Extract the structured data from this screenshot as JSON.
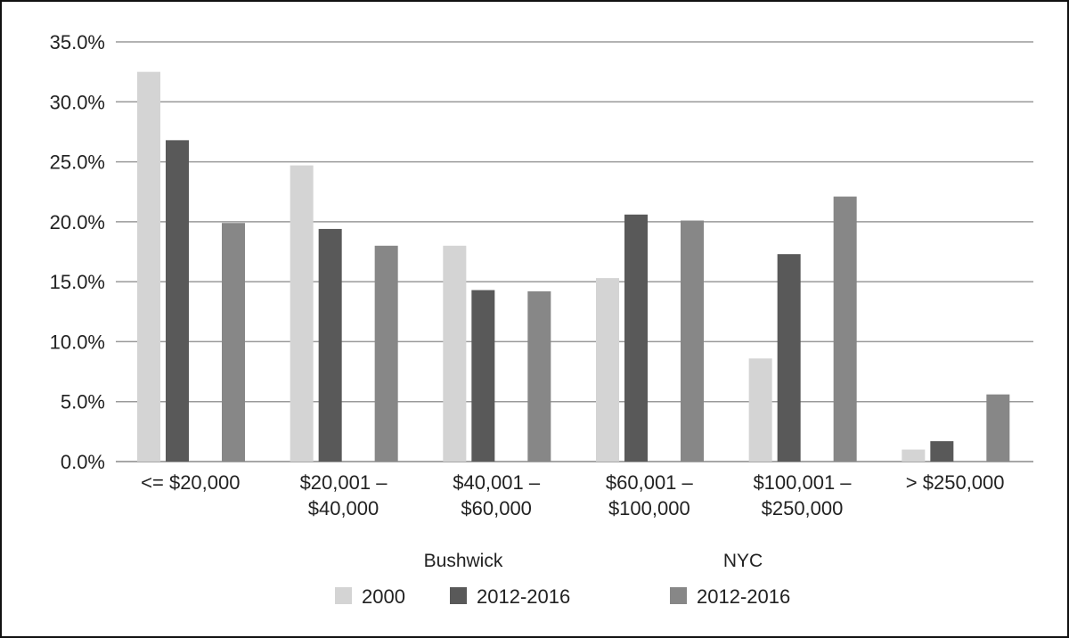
{
  "chart_data": {
    "type": "bar",
    "categories": [
      [
        "<= $20,000"
      ],
      [
        "$20,001 –",
        "$40,000"
      ],
      [
        "$40,001 –",
        "$60,000"
      ],
      [
        "$60,001 –",
        "$100,000"
      ],
      [
        "$100,001 –",
        "$250,000"
      ],
      [
        "> $250,000"
      ]
    ],
    "series": [
      {
        "name": "2000",
        "group": "Bushwick",
        "color": "#d4d4d4",
        "values": [
          32.5,
          24.7,
          18.0,
          15.3,
          8.6,
          1.0
        ]
      },
      {
        "name": "2012-2016",
        "group": "Bushwick",
        "color": "#595959",
        "values": [
          26.8,
          19.4,
          14.3,
          20.6,
          17.3,
          1.7
        ]
      },
      {
        "name": "2012-2016",
        "group": "NYC",
        "color": "#878787",
        "values": [
          19.9,
          18.0,
          14.2,
          20.1,
          22.1,
          5.6
        ]
      }
    ],
    "ylim": [
      0,
      35
    ],
    "yticks": [
      "0.0%",
      "5.0%",
      "10.0%",
      "15.0%",
      "20.0%",
      "25.0%",
      "30.0%",
      "35.0%"
    ],
    "grid": true,
    "legend_groups": [
      "Bushwick",
      "NYC"
    ],
    "legend_placement": "bottom"
  }
}
